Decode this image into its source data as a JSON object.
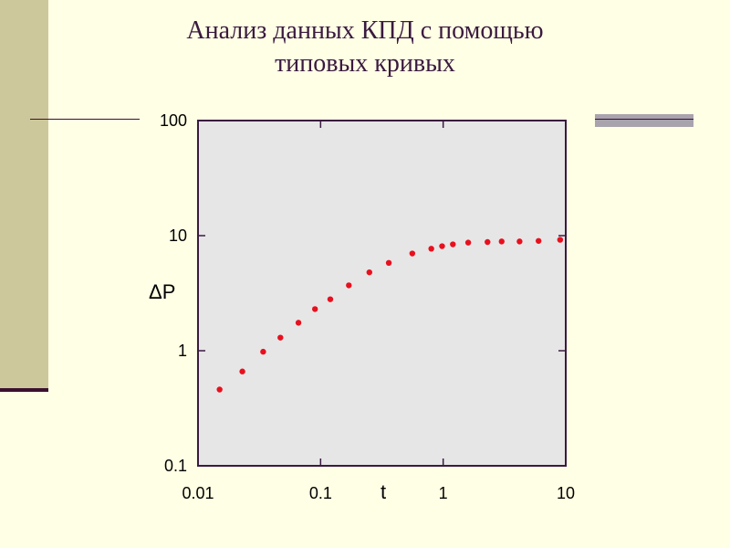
{
  "title_lines": [
    "Анализ данных КПД с помощью",
    "типовых кривых"
  ],
  "chart_data": {
    "type": "scatter",
    "xlabel": "t",
    "ylabel": "ΔP",
    "x_scale": "log",
    "y_scale": "log",
    "xlim": [
      0.01,
      10
    ],
    "ylim": [
      0.1,
      100
    ],
    "x_ticks": [
      "0.01",
      "0.1",
      "1",
      "10"
    ],
    "y_ticks": [
      "0.1",
      "1",
      "10",
      "100"
    ],
    "grid": false,
    "series": [
      {
        "x": [
          0.015,
          0.023,
          0.034,
          0.047,
          0.066,
          0.09,
          0.12,
          0.17,
          0.25,
          0.36,
          0.56,
          0.8,
          0.98,
          1.2,
          1.6,
          2.3,
          3.0,
          4.2,
          6.0,
          9.0
        ],
        "y": [
          0.46,
          0.66,
          0.98,
          1.3,
          1.75,
          2.3,
          2.8,
          3.7,
          4.8,
          5.8,
          7.0,
          7.7,
          8.1,
          8.4,
          8.7,
          8.8,
          8.9,
          8.9,
          9.0,
          9.2
        ]
      }
    ],
    "colors": {
      "points": "#e8101e",
      "plot_bg": "#e6e6e6",
      "axis": "#3a1a40"
    }
  }
}
